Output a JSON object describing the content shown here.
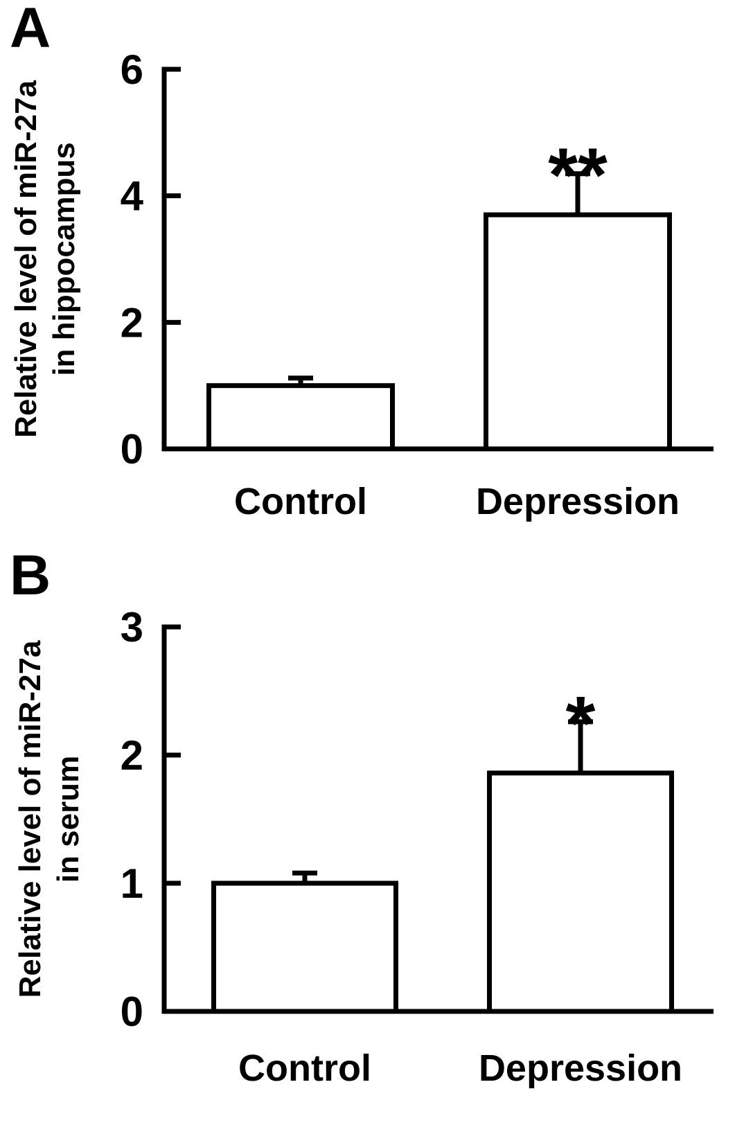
{
  "panels": [
    {
      "label": "A"
    },
    {
      "label": "B"
    }
  ],
  "colors": {
    "foreground": "#000000",
    "bar_fill": "#ffffff",
    "background": "#ffffff"
  },
  "chart_data": [
    {
      "type": "bar",
      "panel": "A",
      "title": "",
      "categories": [
        "Control",
        "Depression"
      ],
      "values": [
        1.0,
        3.7
      ],
      "errors": [
        0.12,
        0.65
      ],
      "significance": [
        "",
        "**"
      ],
      "ylabel_line1": "Relative level of miR-27a",
      "ylabel_line2": "in hippocampus",
      "xlabel": "",
      "ylim": [
        0,
        6
      ],
      "yticks": [
        0,
        2,
        4,
        6
      ],
      "grid": false,
      "legend": "none",
      "bar_fill": "#ffffff",
      "bar_stroke": "#000000"
    },
    {
      "type": "bar",
      "panel": "B",
      "title": "",
      "categories": [
        "Control",
        "Depression"
      ],
      "values": [
        1.0,
        1.86
      ],
      "errors": [
        0.08,
        0.4
      ],
      "significance": [
        "",
        "*"
      ],
      "ylabel_line1": "Relative level of miR-27a",
      "ylabel_line2": "in serum",
      "xlabel": "",
      "ylim": [
        0,
        3
      ],
      "yticks": [
        0,
        1,
        2,
        3
      ],
      "grid": false,
      "legend": "none",
      "bar_fill": "#ffffff",
      "bar_stroke": "#000000"
    }
  ]
}
